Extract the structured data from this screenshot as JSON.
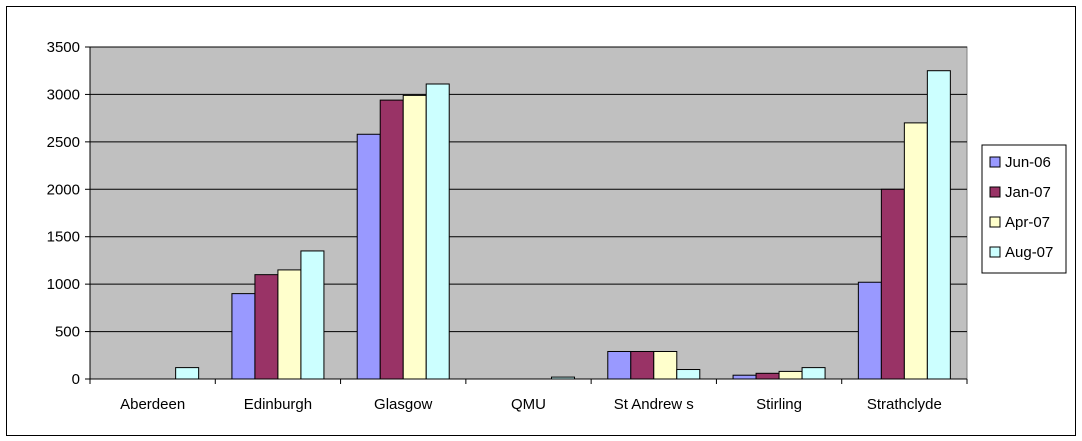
{
  "chart_data": {
    "type": "bar",
    "title": "",
    "xlabel": "",
    "ylabel": "",
    "categories": [
      "Aberdeen",
      "Edinburgh",
      "Glasgow",
      "QMU",
      "St Andrew s",
      "Stirling",
      "Strathclyde"
    ],
    "series": [
      {
        "name": "Jun-06",
        "color": "#9999ff",
        "values": [
          0,
          900,
          2580,
          0,
          290,
          40,
          1020
        ]
      },
      {
        "name": "Jan-07",
        "color": "#993366",
        "values": [
          0,
          1100,
          2940,
          0,
          290,
          60,
          2000
        ]
      },
      {
        "name": "Apr-07",
        "color": "#ffffcc",
        "values": [
          0,
          1150,
          2990,
          0,
          290,
          80,
          2700
        ]
      },
      {
        "name": "Aug-07",
        "color": "#ccffff",
        "values": [
          120,
          1350,
          3110,
          20,
          100,
          120,
          3250
        ]
      }
    ],
    "ylim": [
      0,
      3500
    ],
    "yticks": [
      0,
      500,
      1000,
      1500,
      2000,
      2500,
      3000,
      3500
    ],
    "grid": true,
    "plot_background": "#c0c0c0",
    "legend_position": "right"
  }
}
